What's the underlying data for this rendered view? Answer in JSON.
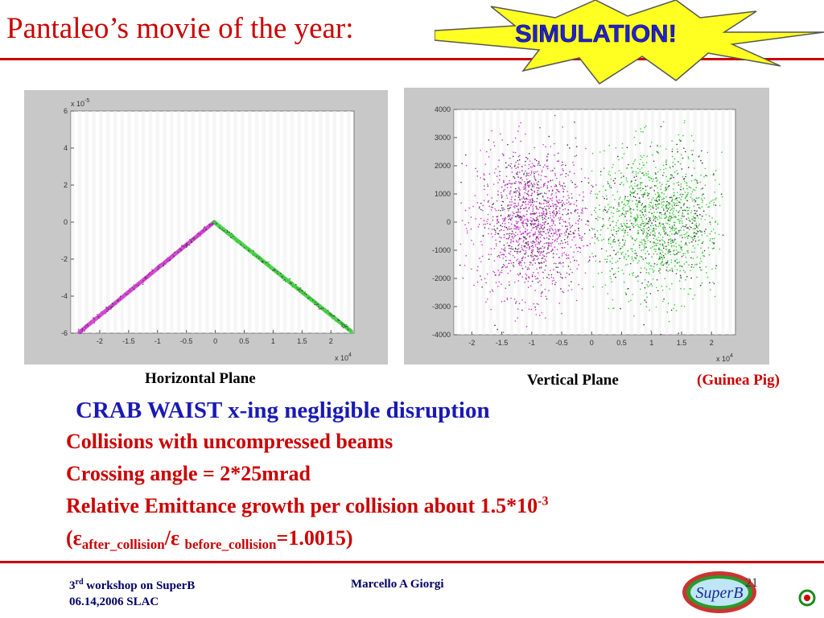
{
  "slide": {
    "title": "Pantaleo’s movie of the year:",
    "burst_label": "SIMULATION!",
    "caption_horizontal": "Horizontal Plane",
    "caption_vertical": "Vertical Plane",
    "caption_guinea": "(Guinea Pig)",
    "headline": "CRAB WAIST x-ing negligible disruption",
    "bullet1": "Collisions with uncompressed beams",
    "bullet2": "Crossing angle = 2*25mrad",
    "bullet3_text": "Relative Emittance growth per collision about 1.5*10",
    "bullet3_exp": "-3",
    "bullet4_open": "(",
    "bullet4_eps1": "ε",
    "bullet4_sub1": "after_collision",
    "bullet4_slash": "/",
    "bullet4_eps2": "ε ",
    "bullet4_sub2": "before_collision",
    "bullet4_close": "=1.0015)"
  },
  "footer": {
    "ord": "3",
    "ord_sup": "rd",
    "workshop_rest": " workshop on SuperB",
    "date_place": "06.14,2006 SLAC",
    "author": "Marcello A Giorgi",
    "page": "21",
    "logo_text": "SuperB"
  },
  "colors": {
    "accent": "#cc0000",
    "headline": "#1a1ab4",
    "magenta": "#cc33cc",
    "green": "#33cc33"
  },
  "chart_data": [
    {
      "type": "scatter",
      "x_tick_labels": [
        "-2",
        "-1.5",
        "-1",
        "-0.5",
        "0",
        "0.5",
        "1",
        "1.5",
        "2"
      ],
      "y_tick_labels": [
        "6",
        "4",
        "2",
        "0",
        "-2",
        "-4",
        "-6"
      ],
      "x_multiplier": "x 10",
      "x_multiplier_exp": "4",
      "y_multiplier": "x 10",
      "y_multiplier_exp": "-5",
      "xlim": [
        -2.5,
        2.4
      ],
      "ylim": [
        -6,
        6
      ],
      "series": [
        {
          "color": "magenta",
          "shape": "line",
          "points": [
            [
              -2.35,
              -5.95
            ],
            [
              -0.02,
              0.0
            ]
          ]
        },
        {
          "color": "green",
          "shape": "line",
          "points": [
            [
              -0.02,
              0.0
            ],
            [
              2.35,
              -5.9
            ]
          ]
        }
      ]
    },
    {
      "type": "scatter",
      "x_tick_labels": [
        "-2",
        "-1.5",
        "-1",
        "-0.5",
        "0",
        "0.5",
        "1",
        "1.5",
        "2"
      ],
      "y_tick_labels": [
        "4000",
        "3000",
        "2000",
        "1000",
        "0",
        "-1000",
        "-2000",
        "-3000",
        "-4000"
      ],
      "x_multiplier": "x 10",
      "x_multiplier_exp": "4",
      "xlim": [
        -2.3,
        2.4
      ],
      "ylim": [
        -4000,
        4000
      ],
      "series": [
        {
          "color": "magenta",
          "shape": "cloud",
          "center": [
            -1.0,
            0
          ],
          "spread": [
            0.45,
            1300
          ],
          "extent": [
            -2.2,
            0.1
          ]
        },
        {
          "color": "green",
          "shape": "cloud",
          "center": [
            1.1,
            0
          ],
          "spread": [
            0.55,
            1300
          ],
          "extent": [
            0.0,
            2.2
          ]
        }
      ]
    }
  ]
}
